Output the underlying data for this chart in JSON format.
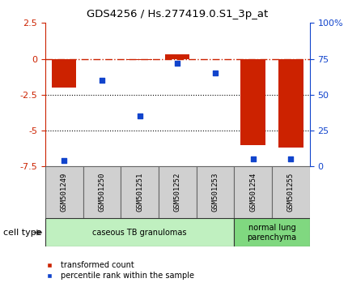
{
  "title": "GDS4256 / Hs.277419.0.S1_3p_at",
  "samples": [
    "GSM501249",
    "GSM501250",
    "GSM501251",
    "GSM501252",
    "GSM501253",
    "GSM501254",
    "GSM501255"
  ],
  "transformed_count": [
    -2.0,
    -0.05,
    -0.1,
    0.3,
    -0.05,
    -6.0,
    -6.2
  ],
  "percentile_rank": [
    4,
    60,
    35,
    72,
    65,
    5,
    5
  ],
  "ylim_left": [
    -7.5,
    2.5
  ],
  "ylim_right": [
    0,
    100
  ],
  "dotted_lines": [
    -2.5,
    -5.0
  ],
  "bar_color": "#cc2200",
  "scatter_color": "#1144cc",
  "cell_groups": [
    {
      "label": "caseous TB granulomas",
      "indices": [
        0,
        1,
        2,
        3,
        4
      ],
      "color": "#c0f0c0"
    },
    {
      "label": "normal lung\nparenchyma",
      "indices": [
        5,
        6
      ],
      "color": "#80d880"
    }
  ],
  "cell_type_label": "cell type",
  "legend_bar_label": "transformed count",
  "legend_scatter_label": "percentile rank within the sample",
  "background_color": "#ffffff",
  "plot_bg": "#ffffff",
  "label_box_color": "#d0d0d0",
  "figsize": [
    4.3,
    3.54
  ],
  "dpi": 100
}
